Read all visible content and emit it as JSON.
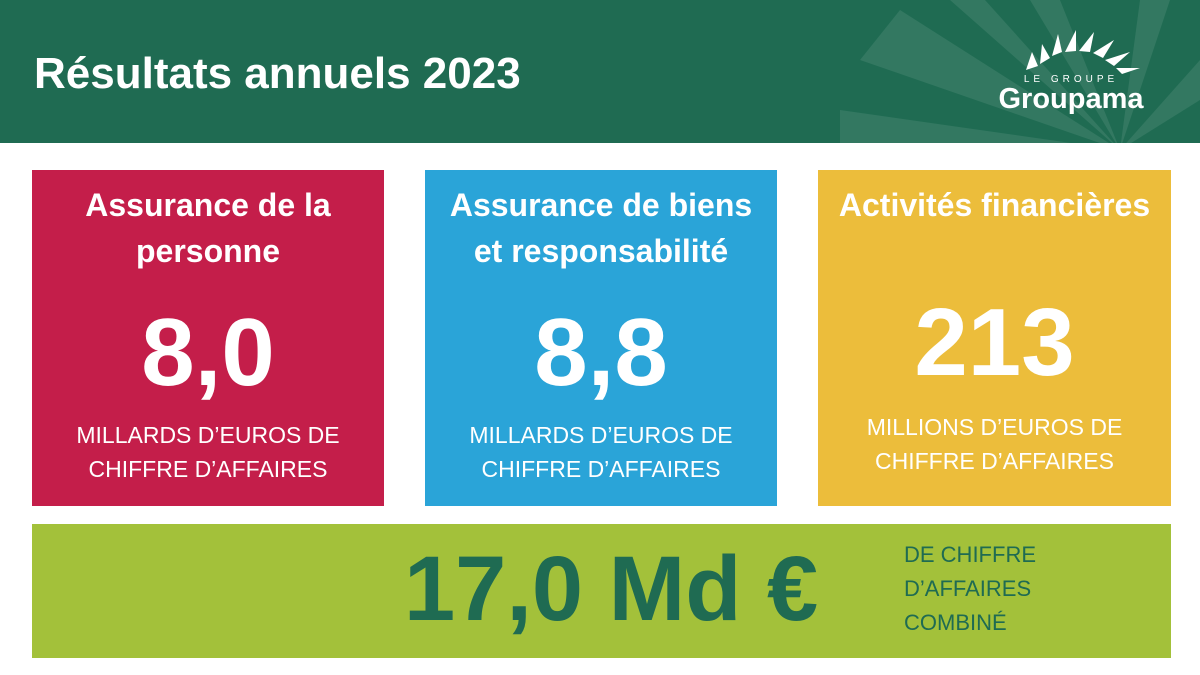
{
  "header": {
    "title": "Résultats annuels 2023",
    "background_color": "#1f6b52"
  },
  "logo": {
    "small_text": "LE GROUPE",
    "name": "Groupama"
  },
  "cards": [
    {
      "title": "Assurance de la personne",
      "value": "8,0",
      "caption": "MILLARDS D’EUROS DE CHIFFRE D’AFFAIRES",
      "color": "#c41e4a"
    },
    {
      "title": "Assurance de biens et responsabilité",
      "value": "8,8",
      "caption": "MILLARDS D’EUROS DE CHIFFRE D’AFFAIRES",
      "color": "#2aa4d8"
    },
    {
      "title": "Activités financières",
      "value": "213",
      "caption": "MILLIONS D’EUROS DE CHIFFRE D’AFFAIRES",
      "color": "#ecbd3b"
    }
  ],
  "total": {
    "value": "17,0 Md €",
    "caption": "DE CHIFFRE D’AFFAIRES COMBINÉ",
    "color": "#a3c13a",
    "text_color": "#1f6b52"
  }
}
